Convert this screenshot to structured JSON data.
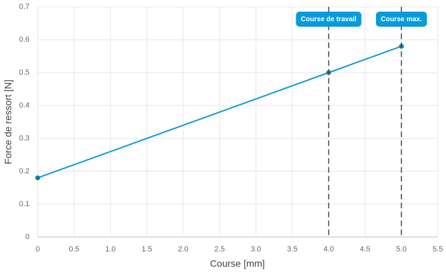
{
  "chart_data": {
    "type": "line",
    "x_label": "Course [mm]",
    "y_label": "Force de ressort [N]",
    "x": [
      0,
      4,
      5
    ],
    "values": [
      0.18,
      0.5,
      0.58
    ],
    "color": "#1597d3",
    "marker_color": "#0b7fa8",
    "xlim": [
      0,
      5.5
    ],
    "xticks": [
      0,
      0.5,
      {
        "value": 1,
        "label": "1.0"
      },
      1.5,
      {
        "value": 2,
        "label": "2.0"
      },
      2.5,
      {
        "value": 3,
        "label": "3.0"
      },
      3.5,
      {
        "value": 4,
        "label": "4.0"
      },
      4.5,
      {
        "value": 5,
        "label": "5.0"
      },
      5.5
    ],
    "ylim": [
      0,
      0.7
    ],
    "yticks": [
      0,
      0.1,
      0.2,
      0.3,
      0.4,
      0.5,
      0.6,
      0.7
    ],
    "grid": true,
    "annotations": [
      {
        "x": 4,
        "label": "Course de travail"
      },
      {
        "x": 5,
        "label": "Course max."
      }
    ],
    "annotation_color": "#0a9ad8"
  }
}
